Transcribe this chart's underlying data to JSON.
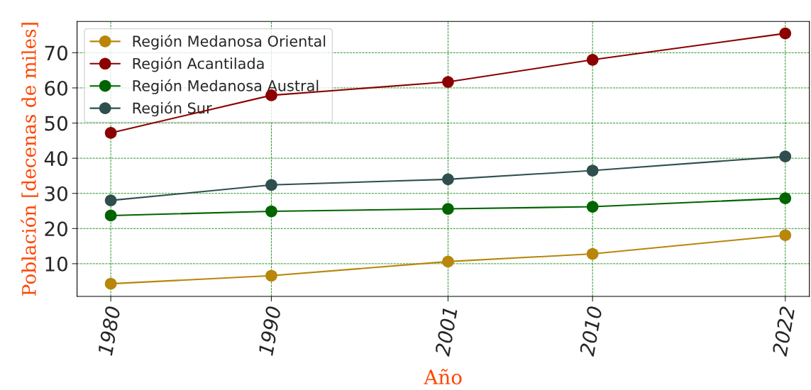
{
  "chart_data": {
    "type": "line",
    "xlabel": "Año",
    "ylabel": "Población [decenas de miles]",
    "x": [
      1980,
      1990,
      2001,
      2010,
      2022
    ],
    "series": [
      {
        "name": "Región Medanosa Oriental",
        "color": "#b8860b",
        "values": [
          4.3,
          6.6,
          10.6,
          12.8,
          18.1
        ]
      },
      {
        "name": "Región Acantilada",
        "color": "#8b0000",
        "values": [
          47.2,
          57.9,
          61.7,
          68.0,
          75.5
        ]
      },
      {
        "name": "Región Medanosa Austral",
        "color": "#006400",
        "values": [
          23.7,
          24.9,
          25.6,
          26.2,
          28.6
        ]
      },
      {
        "name": "Región Sur",
        "color": "#2f4f4f",
        "values": [
          28.0,
          32.4,
          34.0,
          36.5,
          40.5
        ]
      }
    ],
    "xlim": [
      1977.9,
      2023.5
    ],
    "ylim": [
      0.7,
      78.9
    ],
    "xticks": [
      1980,
      1990,
      2001,
      2010,
      2022
    ],
    "yticks": [
      10,
      20,
      30,
      40,
      50,
      60,
      70
    ],
    "grid": true,
    "legend": "top left",
    "marker": "circle",
    "line_style": "solid"
  }
}
